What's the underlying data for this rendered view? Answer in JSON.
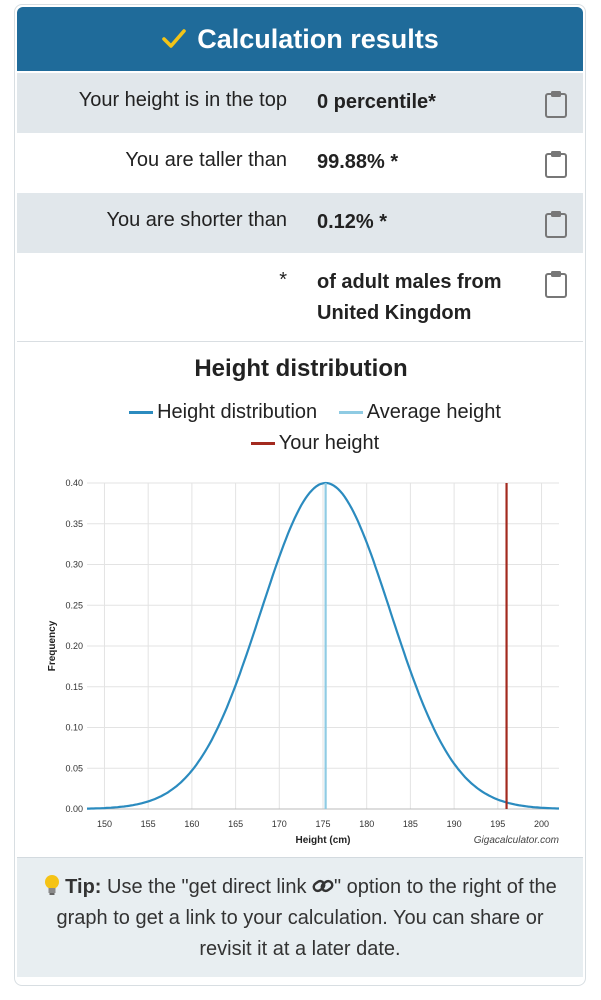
{
  "header": {
    "title": "Calculation results"
  },
  "results": [
    {
      "label": "Your height is in the top",
      "value": "0 percentile*"
    },
    {
      "label": "You are taller than",
      "value": "99.88% *"
    },
    {
      "label": "You are shorter than",
      "value": "0.12% *"
    },
    {
      "label": "*",
      "value_line1": "of adult males from",
      "value_line2": "United Kingdom"
    }
  ],
  "chart_data": {
    "type": "line",
    "title": "Height distribution",
    "xlabel": "Height (cm)",
    "ylabel": "Frequency",
    "xlim": [
      148,
      202
    ],
    "ylim": [
      0,
      0.4
    ],
    "xticks": [
      150,
      155,
      160,
      165,
      170,
      175,
      180,
      185,
      190,
      195,
      200
    ],
    "yticks": [
      "0.00",
      "0.05",
      "0.10",
      "0.15",
      "0.20",
      "0.25",
      "0.30",
      "0.35",
      "0.40"
    ],
    "grid": true,
    "legend_position": "top",
    "series": [
      {
        "name": "Height distribution",
        "color": "#2b8bbf",
        "kind": "normal-curve",
        "mean": 175.3,
        "peak": 0.4,
        "sd": 7.4
      },
      {
        "name": "Average height",
        "color": "#8fcbe3",
        "kind": "vertical-line",
        "x": 175.3
      },
      {
        "name": "Your height",
        "color": "#a32a1f",
        "kind": "vertical-line",
        "x": 196
      }
    ],
    "credit": "Gigacalculator.com"
  },
  "tip": {
    "label": "Tip:",
    "text_before": " Use the \"get direct link ",
    "text_after": "\" option to the right of the graph to get a link to your calculation. You can share or revisit it at a later date."
  },
  "icons": {
    "header": "check-icon",
    "row": "clipboard-icon",
    "tip": "lightbulb-icon",
    "inline": "link-icon"
  }
}
